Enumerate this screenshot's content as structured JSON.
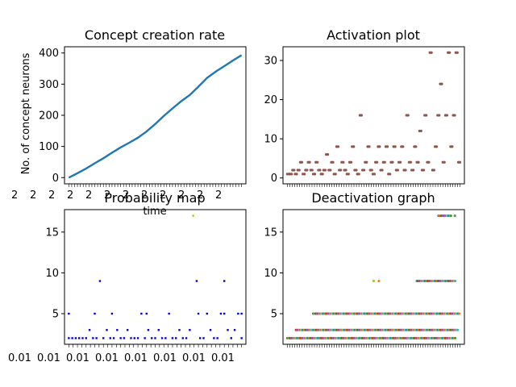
{
  "chart_data": [
    {
      "id": "creation",
      "type": "line",
      "title": "Concept creation rate",
      "xlabel": "time",
      "ylabel": "No. of concept neurons",
      "xlim": [
        -5,
        205
      ],
      "ylim": [
        -20,
        420
      ],
      "yticks": [
        0,
        100,
        200,
        300,
        400
      ],
      "xtick_labels_text": "2",
      "color": "#1f77b4",
      "series": [
        {
          "x": [
            0,
            10,
            20,
            30,
            40,
            50,
            60,
            70,
            80,
            90,
            100,
            110,
            120,
            130,
            140,
            150,
            160,
            170,
            180,
            190,
            200
          ],
          "values": [
            0,
            14,
            29,
            46,
            62,
            80,
            97,
            112,
            128,
            148,
            172,
            198,
            222,
            245,
            265,
            292,
            320,
            340,
            358,
            376,
            393
          ]
        }
      ]
    },
    {
      "id": "activation",
      "type": "scatter",
      "title": "Activation plot",
      "xlim": [
        -5,
        205
      ],
      "ylim": [
        -1.5,
        33.5
      ],
      "yticks": [
        0,
        10,
        20,
        30
      ],
      "color": "#8c564b",
      "x": [
        0,
        3,
        6,
        9,
        12,
        15,
        18,
        21,
        24,
        27,
        30,
        33,
        36,
        39,
        42,
        45,
        48,
        51,
        54,
        57,
        60,
        63,
        66,
        69,
        72,
        75,
        78,
        81,
        84,
        87,
        90,
        93,
        96,
        99,
        102,
        105,
        108,
        111,
        114,
        117,
        120,
        123,
        126,
        129,
        132,
        135,
        138,
        141,
        144,
        147,
        150,
        153,
        156,
        159,
        162,
        165,
        168,
        171,
        174,
        177,
        180,
        183,
        186,
        189,
        192,
        195,
        198
      ],
      "values": [
        1,
        1,
        2,
        1,
        2,
        4,
        1,
        2,
        4,
        2,
        1,
        4,
        2,
        1,
        2,
        6,
        2,
        4,
        1,
        8,
        2,
        4,
        2,
        1,
        4,
        8,
        2,
        1,
        16,
        2,
        4,
        8,
        2,
        1,
        4,
        8,
        2,
        4,
        8,
        1,
        4,
        8,
        2,
        4,
        8,
        2,
        16,
        4,
        2,
        8,
        4,
        12,
        2,
        16,
        4,
        32,
        2,
        8,
        16,
        24,
        4,
        16,
        32,
        8,
        16,
        32,
        4
      ]
    },
    {
      "id": "probability",
      "type": "scatter",
      "title": "Probability map",
      "xlim": [
        -5,
        205
      ],
      "ylim": [
        1.25,
        17.75
      ],
      "yticks": [
        5,
        10,
        15
      ],
      "xtick_labels_text": "0.01",
      "color": "#0000cc",
      "highlight_color": "#bcbd22",
      "x": [
        0,
        4,
        8,
        12,
        16,
        20,
        24,
        28,
        32,
        36,
        40,
        44,
        48,
        52,
        56,
        60,
        64,
        68,
        72,
        76,
        80,
        84,
        88,
        92,
        96,
        100,
        104,
        108,
        112,
        116,
        120,
        124,
        128,
        132,
        136,
        140,
        144,
        148,
        152,
        156,
        160,
        164,
        168,
        172,
        176,
        180,
        184,
        188,
        192,
        196,
        200,
        0,
        30,
        50,
        90,
        150,
        180,
        200
      ],
      "values": [
        2,
        2,
        2,
        2,
        2,
        2,
        3,
        2,
        2,
        9,
        2,
        3,
        2,
        2,
        3,
        2,
        2,
        3,
        2,
        2,
        2,
        5,
        2,
        3,
        2,
        2,
        3,
        2,
        2,
        5,
        2,
        2,
        3,
        2,
        2,
        3,
        17,
        9,
        2,
        2,
        5,
        3,
        2,
        2,
        5,
        9,
        3,
        2,
        3,
        5,
        2,
        5,
        5,
        5,
        5,
        5,
        5,
        5
      ]
    },
    {
      "id": "deactivation",
      "type": "scatter",
      "title": "Deactivation graph",
      "xlim": [
        -5,
        205
      ],
      "ylim": [
        1.25,
        17.75
      ],
      "yticks": [
        5,
        10,
        15
      ],
      "bands": [
        {
          "y": 2,
          "x_start": 0,
          "x_end": 195
        },
        {
          "y": 3,
          "x_start": 10,
          "x_end": 198
        },
        {
          "y": 5,
          "x_start": 30,
          "x_end": 200
        },
        {
          "y": 9,
          "x_start": 150,
          "x_end": 195
        },
        {
          "y": 17,
          "x_start": 175,
          "x_end": 190
        }
      ],
      "sparse_points": [
        {
          "x": 100,
          "y": 9
        },
        {
          "x": 106,
          "y": 9
        },
        {
          "x": 182,
          "y": 17
        },
        {
          "x": 194,
          "y": 17
        }
      ],
      "palette": [
        "#1f77b4",
        "#ff7f0e",
        "#2ca02c",
        "#d62728",
        "#9467bd",
        "#8c564b",
        "#e377c2",
        "#7f7f7f",
        "#bcbd22",
        "#17becf"
      ]
    }
  ]
}
